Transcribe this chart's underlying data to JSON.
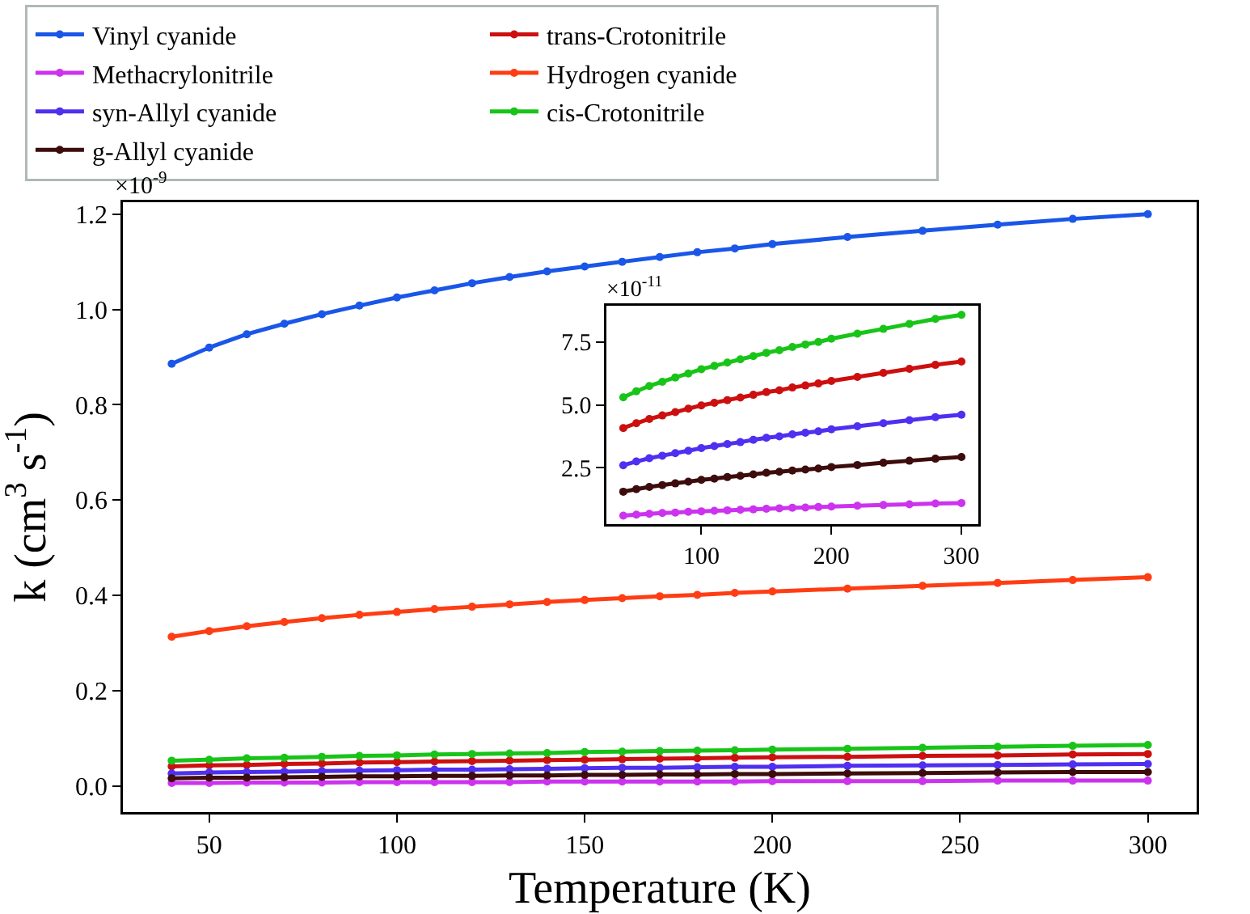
{
  "chart_data": [
    {
      "type": "line",
      "xlabel": "Temperature (K)",
      "ylabel": "k (cm$^{3}$ s$^{-1}$)",
      "annotations": [
        "×10$^{-9}$"
      ],
      "x": [
        40,
        50,
        60,
        70,
        80,
        90,
        100,
        110,
        120,
        130,
        140,
        150,
        160,
        170,
        180,
        190,
        200,
        220,
        240,
        260,
        280,
        300
      ],
      "xlim": [
        27,
        313
      ],
      "xticks": [
        50,
        100,
        150,
        200,
        250,
        300
      ],
      "ylim": [
        -0.055,
        1.225
      ],
      "yticks": [
        {
          "value": 0,
          "label": "0.0"
        },
        0.2,
        0.4,
        0.6,
        0.8,
        {
          "value": 1,
          "label": "1.0"
        },
        1.2
      ],
      "grid": false,
      "legend": "top",
      "marker": "circle",
      "line_style": "solid",
      "series": [
        {
          "name": "Vinyl cyanide",
          "color": "#1a56e8",
          "values": [
            0.886,
            0.92,
            0.948,
            0.97,
            0.99,
            1.008,
            1.025,
            1.04,
            1.055,
            1.068,
            1.08,
            1.09,
            1.1,
            1.11,
            1.12,
            1.128,
            1.137,
            1.152,
            1.165,
            1.178,
            1.19,
            1.2
          ]
        },
        {
          "name": "Hydrogen cyanide",
          "color": "#ff3d14",
          "values": [
            0.313,
            0.325,
            0.335,
            0.344,
            0.352,
            0.359,
            0.365,
            0.371,
            0.376,
            0.381,
            0.386,
            0.39,
            0.394,
            0.398,
            0.401,
            0.405,
            0.408,
            0.414,
            0.42,
            0.426,
            0.432,
            0.438
          ]
        },
        {
          "name": "cis-Crotonitrile",
          "color": "#19c419",
          "values": [
            0.053,
            0.055,
            0.058,
            0.059,
            0.061,
            0.063,
            0.064,
            0.066,
            0.067,
            0.068,
            0.069,
            0.071,
            0.072,
            0.073,
            0.074,
            0.075,
            0.076,
            0.078,
            0.08,
            0.082,
            0.084,
            0.086
          ]
        },
        {
          "name": "trans-Crotonitrile",
          "color": "#cc1010",
          "values": [
            0.041,
            0.043,
            0.044,
            0.046,
            0.047,
            0.049,
            0.05,
            0.051,
            0.052,
            0.053,
            0.054,
            0.055,
            0.056,
            0.057,
            0.058,
            0.059,
            0.06,
            0.061,
            0.063,
            0.064,
            0.066,
            0.067
          ]
        },
        {
          "name": "syn-Allyl cyanide",
          "color": "#4f2ff0",
          "values": [
            0.026,
            0.028,
            0.029,
            0.03,
            0.031,
            0.032,
            0.033,
            0.034,
            0.034,
            0.035,
            0.036,
            0.037,
            0.038,
            0.038,
            0.039,
            0.04,
            0.04,
            0.042,
            0.043,
            0.044,
            0.045,
            0.046
          ]
        },
        {
          "name": "g-Allyl cyanide",
          "color": "#3d0c0c",
          "values": [
            0.016,
            0.017,
            0.017,
            0.018,
            0.019,
            0.02,
            0.02,
            0.021,
            0.021,
            0.022,
            0.022,
            0.023,
            0.023,
            0.024,
            0.024,
            0.025,
            0.025,
            0.026,
            0.027,
            0.028,
            0.029,
            0.029
          ]
        },
        {
          "name": "Methacrylonitrile",
          "color": "#cc33ee",
          "values": [
            0.006,
            0.006,
            0.007,
            0.007,
            0.007,
            0.008,
            0.008,
            0.008,
            0.008,
            0.008,
            0.009,
            0.009,
            0.009,
            0.009,
            0.009,
            0.009,
            0.01,
            0.01,
            0.01,
            0.011,
            0.011,
            0.011
          ]
        }
      ]
    },
    {
      "type": "line",
      "annotations": [
        "×10$^{-11}$"
      ],
      "x": [
        40,
        50,
        60,
        70,
        80,
        90,
        100,
        110,
        120,
        130,
        140,
        150,
        160,
        170,
        180,
        190,
        200,
        220,
        240,
        260,
        280,
        300
      ],
      "xlim": [
        27,
        313
      ],
      "xticks": [
        100,
        200,
        300
      ],
      "ylim": [
        0.26,
        8.94
      ],
      "yticks": [
        2.5,
        {
          "value": 5,
          "label": "5.0"
        },
        7.5
      ],
      "grid": false,
      "legend": false,
      "marker": "circle",
      "line_style": "solid",
      "series": [
        {
          "color": "#19c419",
          "values": [
            5.3,
            5.54,
            5.75,
            5.92,
            6.09,
            6.25,
            6.42,
            6.55,
            6.68,
            6.81,
            6.94,
            7.07,
            7.17,
            7.3,
            7.4,
            7.5,
            7.63,
            7.83,
            8.02,
            8.22,
            8.42,
            8.58
          ]
        },
        {
          "color": "#cc1010",
          "values": [
            4.08,
            4.27,
            4.44,
            4.58,
            4.71,
            4.85,
            4.98,
            5.08,
            5.19,
            5.29,
            5.4,
            5.51,
            5.58,
            5.69,
            5.77,
            5.85,
            5.95,
            6.11,
            6.27,
            6.43,
            6.59,
            6.72
          ]
        },
        {
          "color": "#4f2ff0",
          "values": [
            2.6,
            2.75,
            2.88,
            2.98,
            3.08,
            3.18,
            3.28,
            3.36,
            3.44,
            3.52,
            3.61,
            3.69,
            3.75,
            3.83,
            3.89,
            3.95,
            4.03,
            4.15,
            4.27,
            4.39,
            4.51,
            4.61
          ]
        },
        {
          "color": "#3d0c0c",
          "values": [
            1.55,
            1.65,
            1.74,
            1.81,
            1.88,
            1.95,
            2.02,
            2.07,
            2.13,
            2.18,
            2.24,
            2.3,
            2.34,
            2.39,
            2.43,
            2.47,
            2.53,
            2.61,
            2.7,
            2.78,
            2.86,
            2.93
          ]
        },
        {
          "color": "#cc33ee",
          "values": [
            0.6,
            0.64,
            0.67,
            0.7,
            0.72,
            0.75,
            0.77,
            0.79,
            0.81,
            0.83,
            0.85,
            0.87,
            0.89,
            0.91,
            0.92,
            0.94,
            0.96,
            0.99,
            1.02,
            1.05,
            1.08,
            1.1
          ]
        }
      ]
    }
  ]
}
